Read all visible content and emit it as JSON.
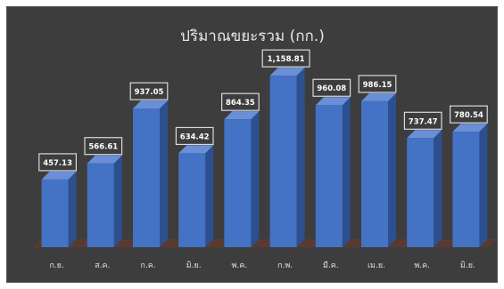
{
  "chart_data": {
    "type": "bar",
    "title": "ปริมาณขยะรวม (กก.)",
    "categories": [
      "ก.ย.",
      "ส.ค.",
      "ก.ค.",
      "มิ.ย.",
      "พ.ค.",
      "ก.พ.",
      "มี.ค.",
      "เม.ย.",
      "พ.ค.",
      "มิ.ย."
    ],
    "values": [
      457.13,
      566.61,
      937.05,
      634.42,
      864.35,
      1158.81,
      960.08,
      986.15,
      737.47,
      780.54
    ],
    "value_labels": [
      "457.13",
      "566.61",
      "937.05",
      "634.42",
      "864.35",
      "1,158.81",
      "960.08",
      "986.15",
      "737.47",
      "780.54"
    ],
    "xlabel": "",
    "ylabel": "",
    "ylim": [
      0,
      1250
    ],
    "grid": false,
    "legend": "none",
    "colors": {
      "background": "#3d3d3d",
      "bar_front": "#4472c4",
      "bar_side": "#2c4f8f",
      "bar_top": "#6b8fd6",
      "floor": "#5a3a30",
      "label_bg": "#3d3d3d",
      "label_border": "#d9d9d9"
    }
  }
}
